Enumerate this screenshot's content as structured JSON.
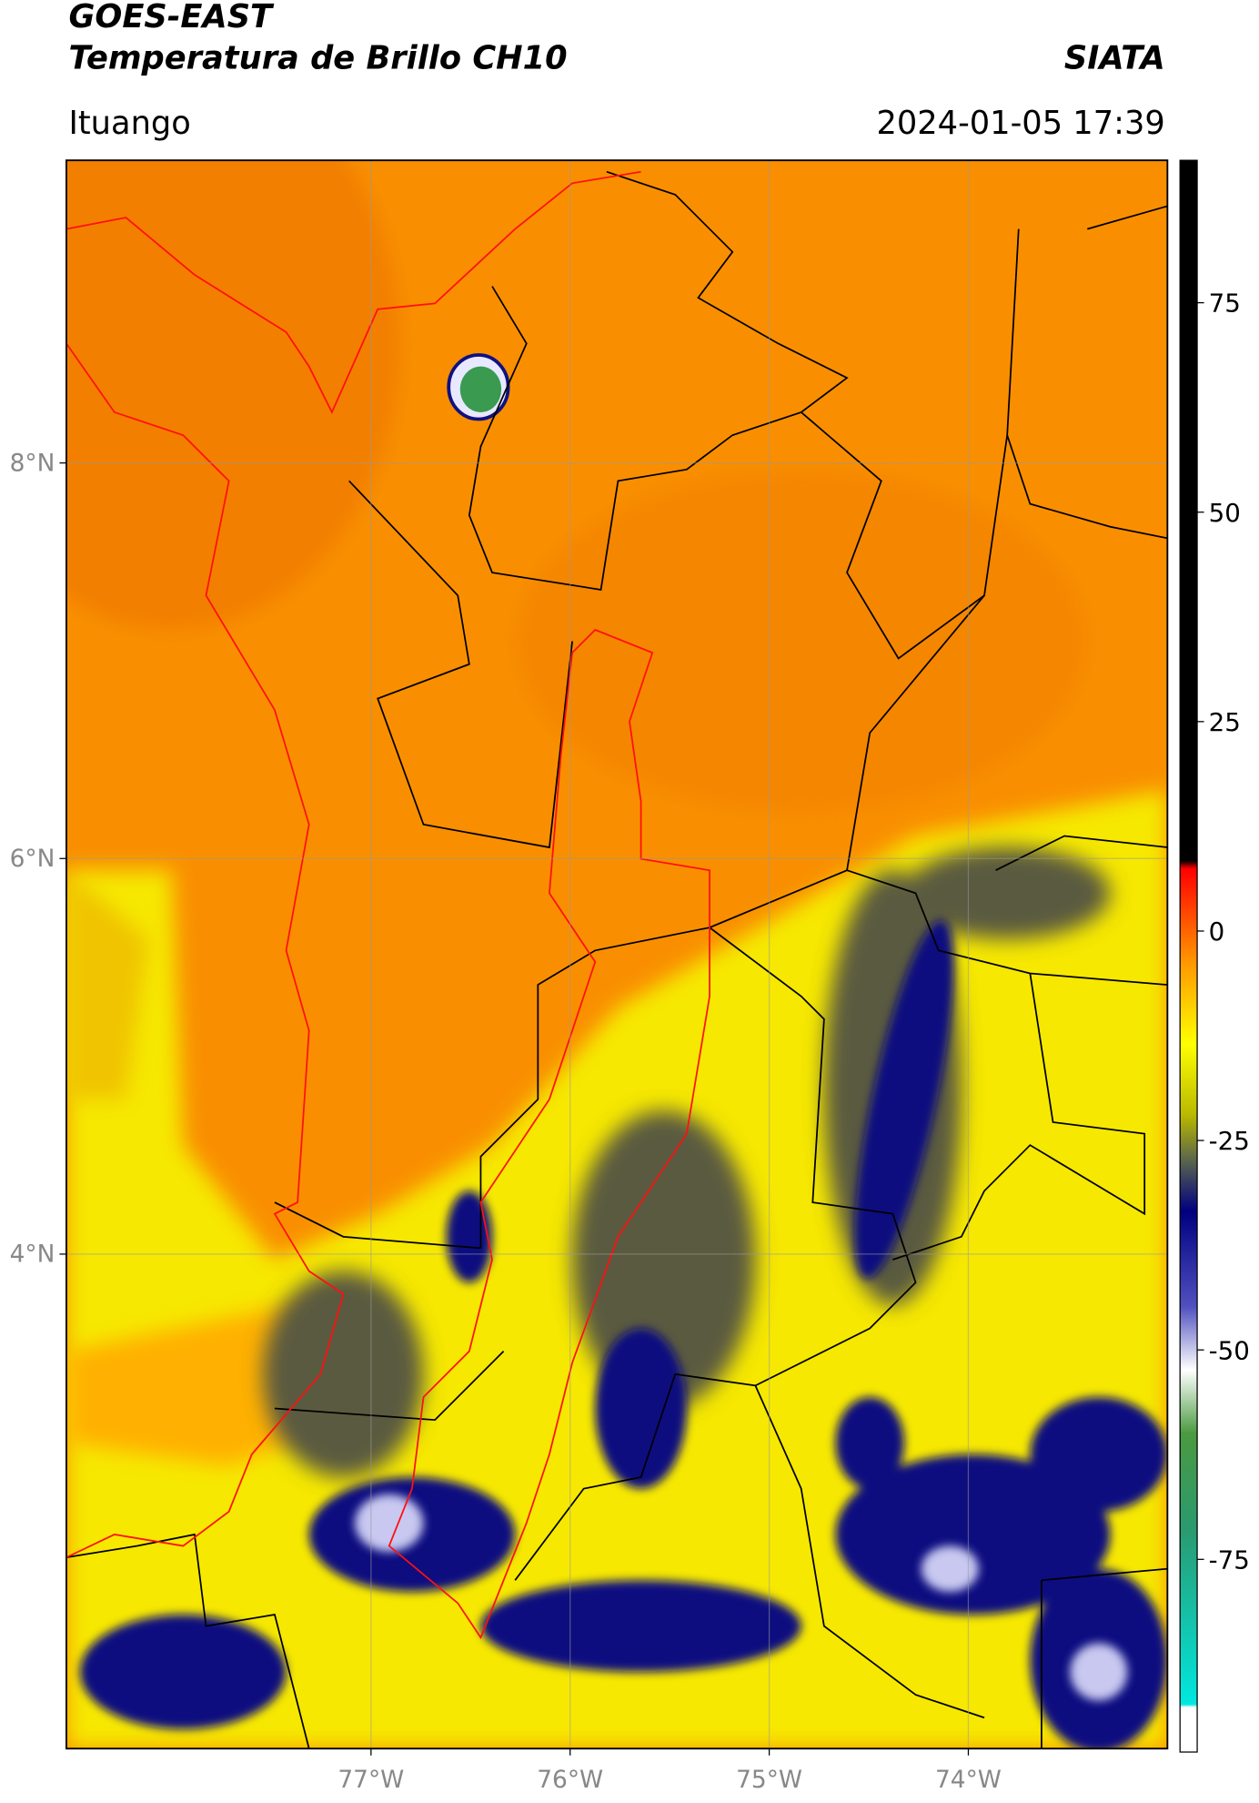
{
  "header": {
    "title": "GOES-EAST",
    "subtitle": "Temperatura de Brillo CH10",
    "source": "SIATA",
    "location": "Ituango",
    "timestamp": "2024-01-05 17:39"
  },
  "map": {
    "xlim": [
      -78.53,
      -73.0
    ],
    "ylim": [
      1.5,
      9.53
    ],
    "xticks": [
      {
        "value": -77,
        "label": "77°W"
      },
      {
        "value": -76,
        "label": "76°W"
      },
      {
        "value": -75,
        "label": "75°W"
      },
      {
        "value": -74,
        "label": "74°W"
      }
    ],
    "yticks": [
      {
        "value": 8,
        "label": "8°N"
      },
      {
        "value": 6,
        "label": "6°N"
      },
      {
        "value": 4,
        "label": "4°N"
      }
    ],
    "grid": true
  },
  "colorbar": {
    "lim": [
      -98,
      92
    ],
    "ticks": [
      75,
      50,
      25,
      0,
      -25,
      -50,
      -75
    ]
  }
}
